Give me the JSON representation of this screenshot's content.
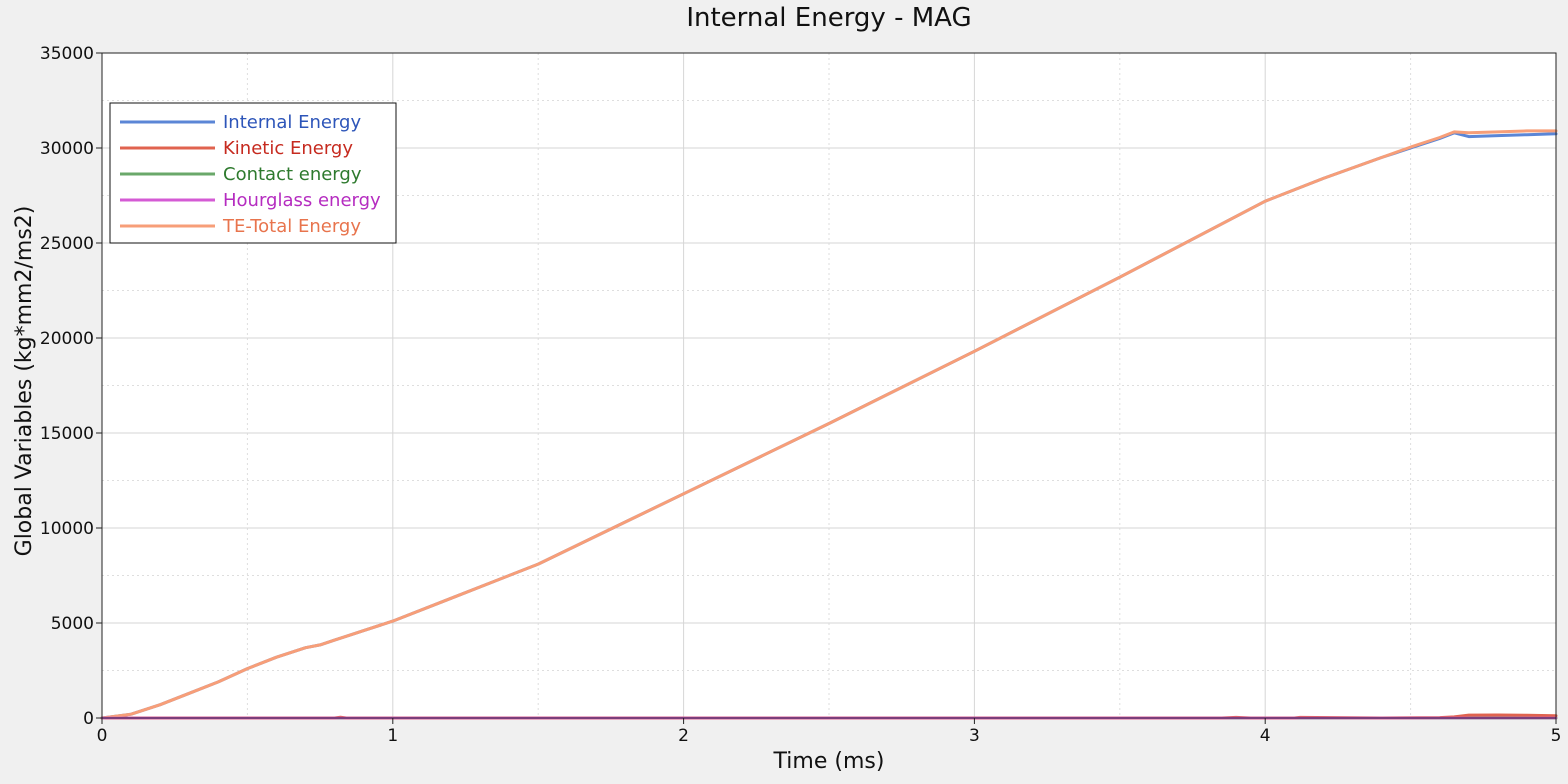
{
  "chart_data": {
    "type": "line",
    "title": "Internal Energy - MAG",
    "xlabel": "Time (ms)",
    "ylabel": "Global Variables (kg*mm2/ms2)",
    "xlim": [
      0,
      5
    ],
    "ylim": [
      0,
      35000
    ],
    "x_ticks": [
      "0",
      "1",
      "2",
      "3",
      "4",
      "5"
    ],
    "y_ticks": [
      "0",
      "5000",
      "10000",
      "15000",
      "20000",
      "25000",
      "30000",
      "35000"
    ],
    "grid": true,
    "legend_position": "top-left",
    "series": [
      {
        "name": "Internal Energy",
        "color": "#5b86d6",
        "text_color": "#2d55b9",
        "x": [
          0,
          0.1,
          0.2,
          0.3,
          0.4,
          0.5,
          0.6,
          0.7,
          0.75,
          0.8,
          0.9,
          1.0,
          1.2,
          1.5,
          2.0,
          2.5,
          3.0,
          3.5,
          4.0,
          4.2,
          4.4,
          4.5,
          4.6,
          4.65,
          4.7,
          4.8,
          4.9,
          5.0
        ],
        "y": [
          0,
          200,
          700,
          1300,
          1900,
          2600,
          3200,
          3700,
          3850,
          4100,
          4600,
          5100,
          6300,
          8100,
          11800,
          15500,
          19300,
          23200,
          27200,
          28400,
          29500,
          30000,
          30500,
          30800,
          30600,
          30650,
          30700,
          30750
        ]
      },
      {
        "name": "Kinetic Energy",
        "color": "#e0634f",
        "text_color": "#c62a1f",
        "x": [
          0,
          0.8,
          0.82,
          0.84,
          3.85,
          3.9,
          3.95,
          4.1,
          4.12,
          4.4,
          4.6,
          4.65,
          4.7,
          4.8,
          4.9,
          5.0
        ],
        "y": [
          0,
          0,
          40,
          0,
          0,
          30,
          0,
          0,
          30,
          0,
          20,
          60,
          150,
          160,
          140,
          120
        ]
      },
      {
        "name": "Contact energy",
        "color": "#6aa86a",
        "text_color": "#2e7a2e",
        "x": [
          0,
          5
        ],
        "y": [
          0,
          0
        ]
      },
      {
        "name": "Hourglass energy",
        "color": "#d45bd4",
        "text_color": "#b52cc0",
        "x": [
          0,
          5
        ],
        "y": [
          0,
          0
        ]
      },
      {
        "name": "TE-Total Energy",
        "color": "#f79e78",
        "text_color": "#e8744d",
        "x": [
          0,
          0.1,
          0.2,
          0.3,
          0.4,
          0.5,
          0.6,
          0.7,
          0.75,
          0.8,
          0.9,
          1.0,
          1.2,
          1.5,
          2.0,
          2.5,
          3.0,
          3.5,
          4.0,
          4.2,
          4.4,
          4.5,
          4.6,
          4.65,
          4.7,
          4.8,
          4.9,
          5.0
        ],
        "y": [
          0,
          200,
          700,
          1300,
          1900,
          2600,
          3200,
          3700,
          3850,
          4100,
          4600,
          5100,
          6300,
          8100,
          11800,
          15500,
          19300,
          23200,
          27200,
          28400,
          29500,
          30050,
          30550,
          30850,
          30800,
          30850,
          30900,
          30900
        ]
      }
    ]
  }
}
